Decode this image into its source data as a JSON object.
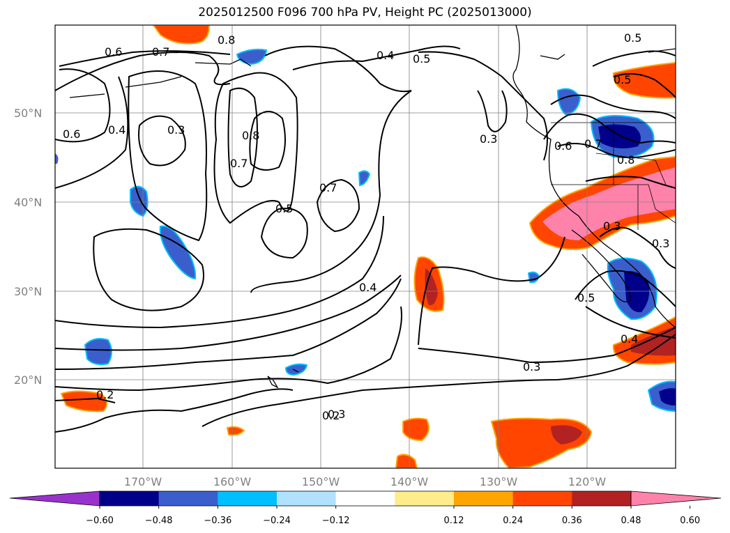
{
  "title": "2025012500 F096 700 hPa PV, Height PC (2025013000)",
  "latitude_labels": [
    "50°N",
    "40°N",
    "30°N",
    "20°N"
  ],
  "longitude_labels": [
    "170°W",
    "160°W",
    "150°W",
    "140°W",
    "130°W",
    "120°W"
  ],
  "contour_labels": [
    "0.6",
    "0.7",
    "0.8",
    "0.4",
    "0.5",
    "0.3",
    "0.6",
    "0.4",
    "0.3",
    "0.8",
    "0.7",
    "0.7",
    "0.5",
    "0.4",
    "0.3",
    "0.5",
    "0.6",
    "0.7",
    "0.8",
    "0.3",
    "0.3",
    "0.5",
    "0.4",
    "0.3",
    "0.2",
    "0.2",
    "0.5"
  ],
  "colorbar": {
    "tick_labels": [
      "−0.60",
      "−0.48",
      "−0.36",
      "−0.24",
      "−0.12",
      "0.12",
      "0.24",
      "0.36",
      "0.48",
      "0.60"
    ],
    "colors": [
      "#9932cc",
      "#00008b",
      "#3a5fcd",
      "#00bfff",
      "#b0e2ff",
      "#ffffff",
      "#ffec8b",
      "#ffa500",
      "#ff4500",
      "#b22222",
      "#ff82ab"
    ]
  }
}
